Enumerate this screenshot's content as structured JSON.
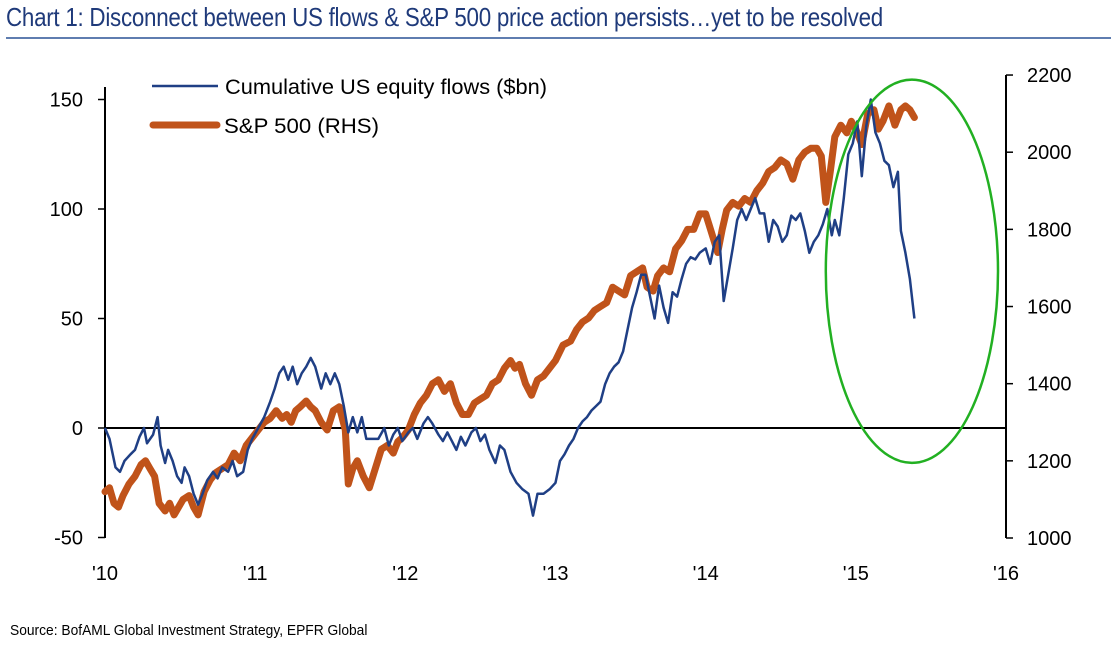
{
  "title": "Chart 1: Disconnect between US flows & S&P 500 price action persists…yet to be resolved",
  "source": "Source: BofAML Global Investment Strategy, EPFR Global",
  "colors": {
    "flows": "#1f3f85",
    "sp500": "#c0531a",
    "highlight": "#22b022",
    "title": "#1f3a7a",
    "rule": "#5f7db0"
  },
  "chart_data": {
    "type": "line",
    "title": "Chart 1: Disconnect between US flows & S&P 500 price action persists…yet to be resolved",
    "xlabel": "",
    "ylabel": "",
    "ylabel_right": "",
    "x_ticks": [
      "'10",
      "'11",
      "'12",
      "'13",
      "'14",
      "'15",
      "'16"
    ],
    "x_tick_values": [
      2010,
      2011,
      2012,
      2013,
      2014,
      2015,
      2016
    ],
    "xlim": [
      2010,
      2016
    ],
    "y_left": {
      "ticks": [
        "150",
        "100",
        "50",
        "0",
        "-50"
      ],
      "tick_values": [
        150,
        100,
        50,
        0,
        -50
      ],
      "ylim": [
        -50,
        160
      ]
    },
    "y_right": {
      "ticks": [
        "2200",
        "2000",
        "1800",
        "1600",
        "1400",
        "1200",
        "1000"
      ],
      "tick_values": [
        2200,
        2000,
        1800,
        1600,
        1400,
        1200,
        1000
      ],
      "ylim": [
        1000,
        2200
      ]
    },
    "zero_line": true,
    "grid": false,
    "legend": {
      "position": "top-left",
      "entries": [
        "Cumulative US equity flows ($bn)",
        "S&P 500 (RHS)"
      ]
    },
    "annotations": [
      {
        "type": "ellipse",
        "label": "highlight 2015 divergence",
        "x_range": [
          2014.8,
          2016.0
        ],
        "y_left_range": [
          -15,
          160
        ]
      }
    ],
    "series": [
      {
        "name": "Cumulative US equity flows ($bn)",
        "axis": "left",
        "x": [
          2010.0,
          2010.03,
          2010.07,
          2010.1,
          2010.13,
          2010.17,
          2010.2,
          2010.23,
          2010.26,
          2010.28,
          2010.32,
          2010.35,
          2010.37,
          2010.4,
          2010.42,
          2010.45,
          2010.48,
          2010.51,
          2010.53,
          2010.56,
          2010.59,
          2010.62,
          2010.65,
          2010.68,
          2010.72,
          2010.75,
          2010.78,
          2010.82,
          2010.85,
          2010.88,
          2010.92,
          2010.95,
          2010.98,
          2011.02,
          2011.06,
          2011.1,
          2011.13,
          2011.16,
          2011.19,
          2011.22,
          2011.25,
          2011.28,
          2011.31,
          2011.34,
          2011.37,
          2011.4,
          2011.44,
          2011.47,
          2011.5,
          2011.53,
          2011.56,
          2011.59,
          2011.62,
          2011.65,
          2011.68,
          2011.71,
          2011.74,
          2011.78,
          2011.82,
          2011.86,
          2011.89,
          2011.92,
          2011.95,
          2011.98,
          2012.02,
          2012.05,
          2012.08,
          2012.12,
          2012.15,
          2012.18,
          2012.22,
          2012.25,
          2012.28,
          2012.31,
          2012.34,
          2012.37,
          2012.4,
          2012.44,
          2012.47,
          2012.5,
          2012.53,
          2012.56,
          2012.6,
          2012.63,
          2012.66,
          2012.7,
          2012.74,
          2012.78,
          2012.82,
          2012.85,
          2012.88,
          2012.92,
          2012.96,
          2013.0,
          2013.03,
          2013.06,
          2013.09,
          2013.12,
          2013.15,
          2013.18,
          2013.21,
          2013.24,
          2013.27,
          2013.3,
          2013.33,
          2013.36,
          2013.39,
          2013.42,
          2013.45,
          2013.48,
          2013.51,
          2013.54,
          2013.57,
          2013.6,
          2013.63,
          2013.66,
          2013.69,
          2013.72,
          2013.75,
          2013.78,
          2013.81,
          2013.84,
          2013.87,
          2013.9,
          2013.93,
          2013.96,
          2014.0,
          2014.03,
          2014.06,
          2014.09,
          2014.12,
          2014.15,
          2014.18,
          2014.21,
          2014.24,
          2014.27,
          2014.3,
          2014.33,
          2014.36,
          2014.39,
          2014.42,
          2014.45,
          2014.48,
          2014.51,
          2014.54,
          2014.57,
          2014.6,
          2014.63,
          2014.66,
          2014.69,
          2014.72,
          2014.75,
          2014.78,
          2014.81,
          2014.84,
          2014.86,
          2014.89,
          2014.92,
          2014.95,
          2014.98,
          2015.01,
          2015.04,
          2015.07,
          2015.1,
          2015.13,
          2015.16,
          2015.19,
          2015.22,
          2015.25,
          2015.28,
          2015.3,
          2015.33,
          2015.36,
          2015.39
        ],
        "values": [
          0,
          -5,
          -18,
          -20,
          -15,
          -12,
          -10,
          -4,
          0,
          -7,
          -3,
          5,
          -8,
          -16,
          -10,
          -15,
          -22,
          -25,
          -18,
          -22,
          -30,
          -35,
          -30,
          -24,
          -20,
          -23,
          -18,
          -20,
          -15,
          -22,
          -20,
          -10,
          -5,
          0,
          5,
          12,
          18,
          25,
          28,
          22,
          28,
          20,
          25,
          28,
          32,
          28,
          18,
          25,
          20,
          25,
          20,
          10,
          -2,
          5,
          -2,
          5,
          -5,
          -5,
          -5,
          0,
          -8,
          -3,
          0,
          -6,
          -2,
          0,
          -5,
          2,
          5,
          2,
          -3,
          -6,
          -2,
          -6,
          -10,
          -4,
          -8,
          -2,
          0,
          -6,
          -3,
          -10,
          -16,
          -8,
          -10,
          -20,
          -25,
          -28,
          -30,
          -40,
          -30,
          -30,
          -28,
          -25,
          -15,
          -12,
          -8,
          -5,
          0,
          3,
          5,
          8,
          10,
          12,
          20,
          25,
          28,
          30,
          35,
          45,
          55,
          62,
          70,
          70,
          60,
          50,
          65,
          55,
          48,
          62,
          60,
          68,
          75,
          78,
          77,
          80,
          82,
          75,
          85,
          88,
          58,
          70,
          82,
          95,
          100,
          95,
          100,
          105,
          98,
          98,
          85,
          95,
          92,
          85,
          88,
          97,
          95,
          98,
          90,
          80,
          85,
          88,
          93,
          100,
          88,
          95,
          88,
          105,
          125,
          130,
          140,
          115,
          138,
          150,
          135,
          130,
          122,
          120,
          110,
          117,
          90,
          80,
          68,
          50
        ]
      },
      {
        "name": "S&P 500 (RHS)",
        "axis": "right",
        "x": [
          2010.0,
          2010.03,
          2010.06,
          2010.09,
          2010.12,
          2010.16,
          2010.2,
          2010.24,
          2010.27,
          2010.3,
          2010.33,
          2010.36,
          2010.4,
          2010.43,
          2010.46,
          2010.49,
          2010.52,
          2010.56,
          2010.59,
          2010.62,
          2010.66,
          2010.7,
          2010.74,
          2010.78,
          2010.82,
          2010.86,
          2010.9,
          2010.94,
          2010.98,
          2011.02,
          2011.06,
          2011.1,
          2011.14,
          2011.18,
          2011.21,
          2011.24,
          2011.27,
          2011.3,
          2011.34,
          2011.37,
          2011.4,
          2011.44,
          2011.48,
          2011.52,
          2011.56,
          2011.6,
          2011.62,
          2011.65,
          2011.68,
          2011.72,
          2011.76,
          2011.8,
          2011.84,
          2011.88,
          2011.92,
          2011.95,
          2011.98,
          2012.02,
          2012.06,
          2012.1,
          2012.14,
          2012.18,
          2012.22,
          2012.26,
          2012.3,
          2012.34,
          2012.38,
          2012.42,
          2012.46,
          2012.5,
          2012.54,
          2012.58,
          2012.62,
          2012.66,
          2012.7,
          2012.73,
          2012.76,
          2012.8,
          2012.84,
          2012.88,
          2012.92,
          2012.96,
          2013.0,
          2013.05,
          2013.1,
          2013.14,
          2013.18,
          2013.22,
          2013.26,
          2013.3,
          2013.34,
          2013.38,
          2013.42,
          2013.46,
          2013.5,
          2013.54,
          2013.58,
          2013.61,
          2013.65,
          2013.68,
          2013.72,
          2013.76,
          2013.8,
          2013.84,
          2013.88,
          2013.92,
          2013.96,
          2014.0,
          2014.04,
          2014.08,
          2014.11,
          2014.14,
          2014.18,
          2014.22,
          2014.26,
          2014.3,
          2014.34,
          2014.38,
          2014.42,
          2014.46,
          2014.5,
          2014.54,
          2014.58,
          2014.62,
          2014.66,
          2014.7,
          2014.74,
          2014.77,
          2014.8,
          2014.83,
          2014.86,
          2014.9,
          2014.94,
          2014.97,
          2015.0,
          2015.04,
          2015.08,
          2015.12,
          2015.15,
          2015.18,
          2015.22,
          2015.26,
          2015.3,
          2015.33,
          2015.36,
          2015.39
        ],
        "values": [
          1120,
          1130,
          1090,
          1080,
          1110,
          1140,
          1160,
          1190,
          1200,
          1180,
          1160,
          1090,
          1070,
          1090,
          1060,
          1080,
          1100,
          1110,
          1080,
          1060,
          1120,
          1150,
          1170,
          1180,
          1190,
          1220,
          1200,
          1240,
          1260,
          1280,
          1300,
          1310,
          1330,
          1310,
          1320,
          1300,
          1330,
          1340,
          1355,
          1340,
          1330,
          1300,
          1280,
          1330,
          1340,
          1280,
          1140,
          1180,
          1200,
          1160,
          1130,
          1180,
          1230,
          1240,
          1220,
          1250,
          1260,
          1280,
          1320,
          1350,
          1370,
          1400,
          1410,
          1380,
          1400,
          1350,
          1320,
          1320,
          1350,
          1360,
          1370,
          1400,
          1410,
          1440,
          1460,
          1440,
          1450,
          1400,
          1370,
          1410,
          1420,
          1440,
          1460,
          1500,
          1510,
          1540,
          1560,
          1570,
          1590,
          1600,
          1610,
          1650,
          1640,
          1630,
          1680,
          1690,
          1700,
          1650,
          1640,
          1680,
          1700,
          1690,
          1750,
          1770,
          1800,
          1800,
          1840,
          1840,
          1790,
          1740,
          1800,
          1850,
          1870,
          1860,
          1880,
          1870,
          1900,
          1920,
          1950,
          1960,
          1980,
          1970,
          1930,
          1980,
          2000,
          2010,
          2010,
          1990,
          1870,
          1950,
          2040,
          2070,
          2050,
          2080,
          2060,
          2020,
          2100,
          2110,
          2060,
          2080,
          2120,
          2070,
          2110,
          2120,
          2110,
          2090
        ]
      }
    ]
  }
}
